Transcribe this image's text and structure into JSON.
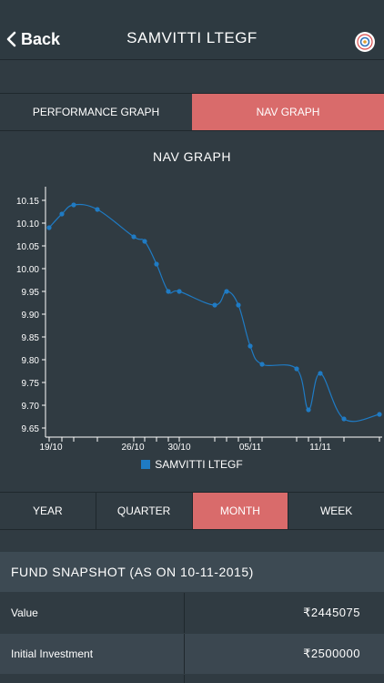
{
  "nav": {
    "back_label": "Back",
    "title": "SAMVITTI LTEGF"
  },
  "graph_tabs": [
    {
      "label": "PERFORMANCE GRAPH",
      "active": false
    },
    {
      "label": "NAV GRAPH",
      "active": true
    }
  ],
  "chart_title": "NAV GRAPH",
  "chart_data": {
    "type": "line",
    "title": "NAV GRAPH",
    "series": [
      {
        "name": "SAMVITTI LTEGF",
        "color": "#1f7bc4",
        "values": [
          10.09,
          10.12,
          10.14,
          10.13,
          10.07,
          10.06,
          10.01,
          9.95,
          9.95,
          9.92,
          9.95,
          9.92,
          9.83,
          9.79,
          9.78,
          9.69,
          9.77,
          9.67,
          9.68
        ]
      }
    ],
    "x_labels": [
      "19/10",
      "26/10",
      "30/10",
      "05/11",
      "11/11"
    ],
    "y_ticks": [
      "10.15",
      "10.10",
      "10.05",
      "10.00",
      "9.95",
      "9.90",
      "9.85",
      "9.80",
      "9.75",
      "9.70",
      "9.65"
    ],
    "ylim": [
      9.63,
      10.18
    ],
    "legend": "bottom"
  },
  "period_tabs": [
    {
      "label": "YEAR",
      "active": false
    },
    {
      "label": "QUARTER",
      "active": false
    },
    {
      "label": "MONTH",
      "active": true
    },
    {
      "label": "WEEK",
      "active": false
    }
  ],
  "snapshot": {
    "title": "FUND SNAPSHOT (AS ON 10-11-2015)",
    "rows": [
      {
        "label": "Value",
        "value": "₹2445075"
      },
      {
        "label": "Initial Investment",
        "value": "₹2500000"
      }
    ]
  }
}
